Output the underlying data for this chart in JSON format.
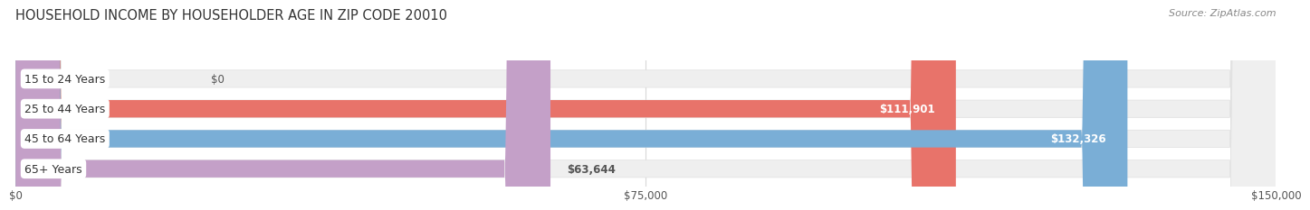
{
  "title": "HOUSEHOLD INCOME BY HOUSEHOLDER AGE IN ZIP CODE 20010",
  "source": "Source: ZipAtlas.com",
  "categories": [
    "15 to 24 Years",
    "25 to 44 Years",
    "45 to 64 Years",
    "65+ Years"
  ],
  "values": [
    0,
    111901,
    132326,
    63644
  ],
  "bar_colors": [
    "#f2c9a0",
    "#e8736a",
    "#7aaed6",
    "#c4a0c8"
  ],
  "bar_bg_color": "#efefef",
  "value_labels": [
    "$0",
    "$111,901",
    "$132,326",
    "$63,644"
  ],
  "x_ticks": [
    0,
    75000,
    150000
  ],
  "x_tick_labels": [
    "$0",
    "$75,000",
    "$150,000"
  ],
  "xlim": [
    0,
    150000
  ],
  "title_fontsize": 10.5,
  "source_fontsize": 8,
  "bar_label_fontsize": 9,
  "value_fontsize": 8.5,
  "tick_fontsize": 8.5,
  "background_color": "#ffffff",
  "grid_color": "#d8d8d8"
}
